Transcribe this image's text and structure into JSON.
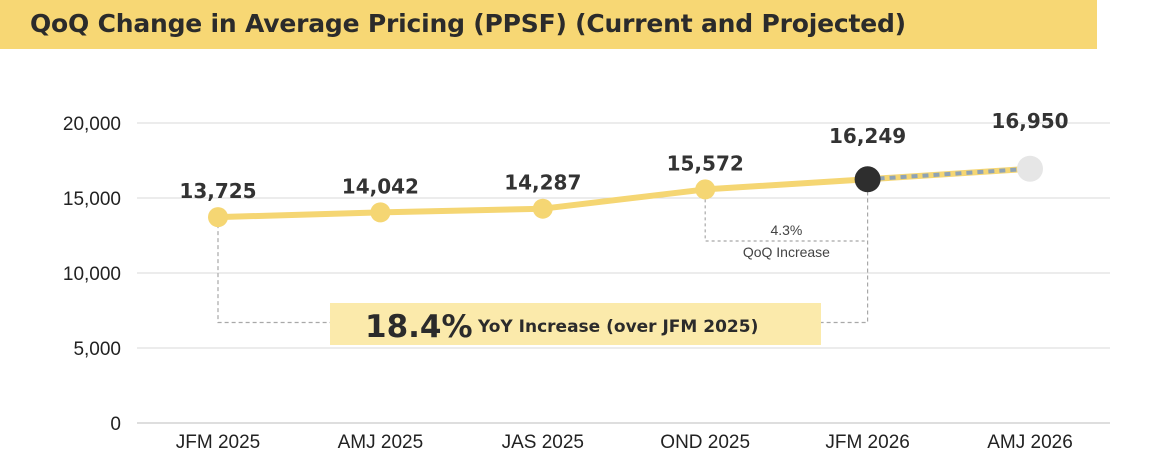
{
  "title": "QoQ Change in Average Pricing (PPSF) (Current and Projected)",
  "colors": {
    "banner": "#f7d774",
    "line": "#f5d673",
    "current_marker": "#2e2e2e",
    "projected_marker": "#e6e6e6",
    "projected_dash": "#8fa3b5",
    "yoy_box": "#fbeaab"
  },
  "chart_data": {
    "type": "line",
    "categories": [
      "JFM 2025",
      "AMJ 2025",
      "JAS 2025",
      "OND 2025",
      "JFM 2026",
      "AMJ 2026"
    ],
    "values": [
      13725,
      14042,
      14287,
      15572,
      16249,
      16950
    ],
    "value_labels": [
      "13,725",
      "14,042",
      "14,287",
      "15,572",
      "16,249",
      "16,950"
    ],
    "current_index": 4,
    "projected_index": 5,
    "ylim": [
      0,
      20000
    ],
    "yticks": [
      0,
      5000,
      10000,
      15000,
      20000
    ],
    "ytick_labels": [
      "0",
      "5,000",
      "10,000",
      "15,000",
      "20,000"
    ],
    "grid": true,
    "annotations": {
      "qoq": {
        "pct": "4.3%",
        "text": "QoQ Increase",
        "from_index": 3,
        "to_index": 4
      },
      "yoy": {
        "pct": "18.4%",
        "text": "YoY Increase (over JFM 2025)",
        "from_index": 0,
        "to_index": 4,
        "level": 6700
      }
    }
  }
}
